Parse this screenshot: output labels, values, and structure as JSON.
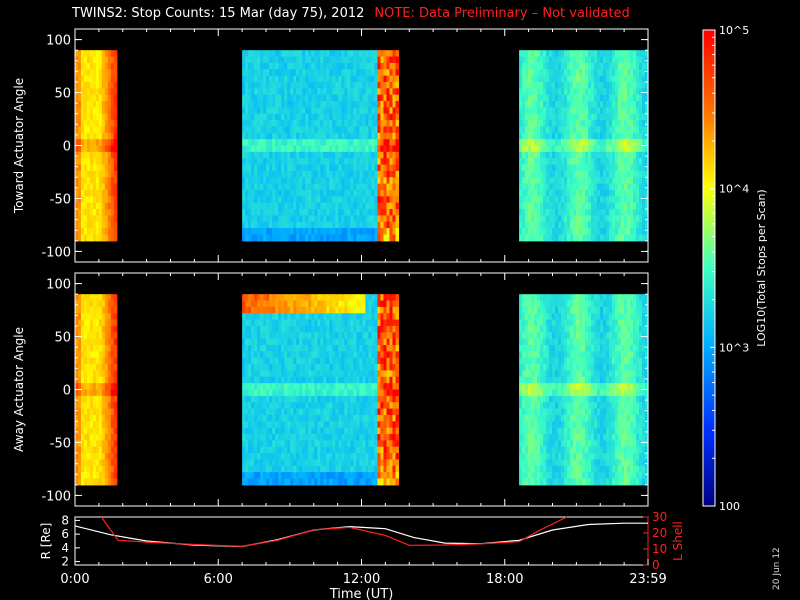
{
  "title": "TWINS2: Stop Counts: 15 Mar (day  75), 2012",
  "note": "NOTE: Data Preliminary – Not validated",
  "generated_date": "20 Jun 12",
  "colors": {
    "background": "#000000",
    "axis": "#ffffff",
    "note": "#ff2020",
    "r_trace": "#ffffff",
    "lshell_trace": "#ff2020"
  },
  "chart_data": [
    {
      "type": "heatmap",
      "panel": "toward",
      "ylabel": "Toward Actuator Angle",
      "ylim": [
        -110,
        110
      ],
      "yticks": [
        100,
        50,
        0,
        -50,
        -100
      ],
      "xlim_hours": [
        0,
        24
      ],
      "angle_range": [
        -90,
        90
      ],
      "data_blocks": [
        {
          "start_hour": 0.0,
          "end_hour": 1.75,
          "log10_counts": 4.1,
          "edge_log10_counts": 4.8
        },
        {
          "start_hour": 7.0,
          "end_hour": 13.55,
          "log10_counts": 3.2,
          "edge_log10_counts": 4.6
        },
        {
          "start_hour": 18.6,
          "end_hour": 24.0,
          "log10_counts": 3.4,
          "edge_log10_counts": 3.8
        }
      ]
    },
    {
      "type": "heatmap",
      "panel": "away",
      "ylabel": "Away Actuator Angle",
      "ylim": [
        -110,
        110
      ],
      "yticks": [
        100,
        50,
        0,
        -50,
        -100
      ],
      "xlim_hours": [
        0,
        24
      ],
      "angle_range": [
        -90,
        90
      ],
      "data_blocks": [
        {
          "start_hour": 0.0,
          "end_hour": 1.75,
          "log10_counts": 4.1,
          "edge_log10_counts": 4.8
        },
        {
          "start_hour": 7.0,
          "end_hour": 13.55,
          "log10_counts": 3.2,
          "edge_log10_counts": 4.6,
          "high_band_angle": [
            70,
            90
          ],
          "high_band_log10_counts": 4.7
        },
        {
          "start_hour": 18.6,
          "end_hour": 24.0,
          "log10_counts": 3.4,
          "edge_log10_counts": 3.8
        }
      ]
    },
    {
      "type": "line",
      "panel": "orbit",
      "ylabel_left": "R [Re]",
      "ylabel_right": "L Shell",
      "ylim_left": [
        1.5,
        8.5
      ],
      "yticks_left": [
        8,
        6,
        4,
        2
      ],
      "ylim_right": [
        0,
        30
      ],
      "yticks_right": [
        30,
        20,
        10,
        0
      ],
      "xlabel": "Time (UT)",
      "xticks": [
        "0:00",
        "6:00",
        "12:00",
        "18:00",
        "23:59"
      ],
      "xtick_hours": [
        0,
        6,
        12,
        18,
        24
      ],
      "series": [
        {
          "axis": "left",
          "color": "#ffffff",
          "x": [
            0,
            1.5,
            3,
            5,
            7,
            8.5,
            10,
            11.5,
            13,
            14.2,
            15.5,
            17,
            18.6,
            20,
            21.5,
            23,
            24
          ],
          "y": [
            7.2,
            5.9,
            5.0,
            4.4,
            4.2,
            5.2,
            6.6,
            7.1,
            6.8,
            5.5,
            4.7,
            4.6,
            5.1,
            6.6,
            7.4,
            7.6,
            7.6
          ]
        },
        {
          "axis": "right",
          "color": "#ff2020",
          "x": [
            1.1,
            1.8,
            3,
            5,
            7,
            8.5,
            10,
            11.5,
            13,
            14,
            15.5,
            17,
            18.6,
            19.5,
            20.6
          ],
          "y": [
            30,
            15.5,
            14.3,
            12.8,
            11.6,
            15.5,
            22,
            23.5,
            18.5,
            12.3,
            12.5,
            13.2,
            14.6,
            22,
            30
          ]
        }
      ]
    }
  ],
  "colorbar": {
    "label": "LOG10(Total Stops per Scan)",
    "range_log10": [
      2,
      5
    ],
    "ticks": [
      {
        "value_log10": 5,
        "label": "10^5"
      },
      {
        "value_log10": 4,
        "label": "10^4"
      },
      {
        "value_log10": 3,
        "label": "10^3"
      },
      {
        "value_log10": 2,
        "label": "100"
      }
    ]
  }
}
